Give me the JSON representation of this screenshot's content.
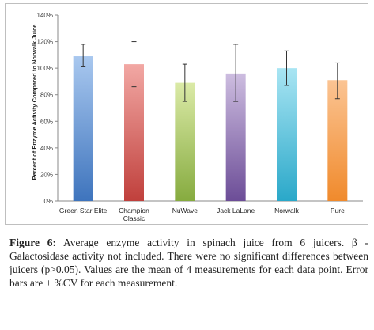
{
  "chart_data": {
    "type": "bar",
    "title": "",
    "xlabel": "",
    "ylabel": "Percent of Enzyme Activity Compared to Norwalk Juice",
    "ylim": [
      0,
      140
    ],
    "yticks": [
      "0%",
      "20%",
      "40%",
      "60%",
      "80%",
      "100%",
      "120%",
      "140%"
    ],
    "grid": false,
    "categories": [
      [
        "Green Star Elite"
      ],
      [
        "Champion",
        "Classic"
      ],
      [
        "NuWave"
      ],
      [
        "Jack LaLane"
      ],
      [
        "Norwalk"
      ],
      [
        "Pure"
      ]
    ],
    "values": [
      109,
      103,
      89,
      96,
      100,
      91
    ],
    "error_low": [
      101,
      86,
      75,
      75,
      87,
      77
    ],
    "error_high": [
      118,
      120,
      103,
      118,
      113,
      104
    ],
    "colors": [
      [
        "#a9c8ef",
        "#3e74bd"
      ],
      [
        "#f2a8a4",
        "#c0403c"
      ],
      [
        "#dbeaa7",
        "#86ab3f"
      ],
      [
        "#cdbde0",
        "#6c4d97"
      ],
      [
        "#a9e5f3",
        "#2aa8c9"
      ],
      [
        "#fbc493",
        "#f08a2c"
      ]
    ]
  },
  "caption": {
    "label": "Figure 6:",
    "text": " Average enzyme activity in spinach juice from 6 juicers. β - Galactosidase activity not included. There were no significant differences between juicers (p>0.05). Values are the mean of 4 measurements for each data point. Error bars are ± %CV for each measurement."
  }
}
